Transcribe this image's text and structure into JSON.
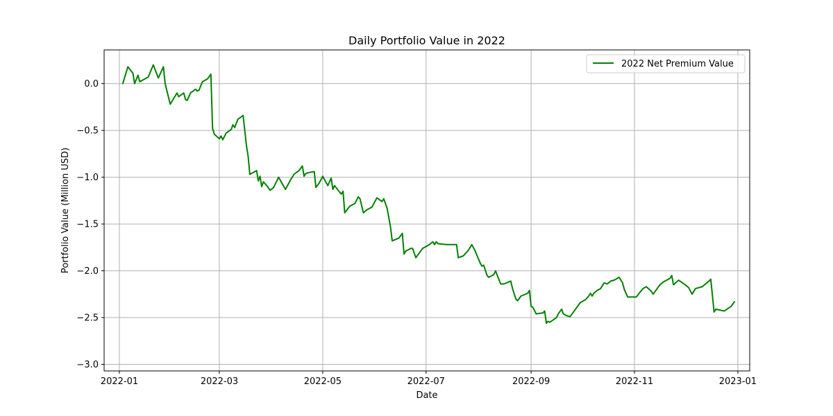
{
  "chart_data": {
    "type": "line",
    "title": "Daily Portfolio Value in 2022",
    "xlabel": "Date",
    "ylabel": "Portfolio Value (Million USD)",
    "xlim": [
      "2021-12-23",
      "2023-01-08"
    ],
    "ylim": [
      -3.07,
      0.36
    ],
    "x_ticks": [
      "2022-01-01",
      "2022-03-01",
      "2022-05-01",
      "2022-07-01",
      "2022-09-01",
      "2022-11-01",
      "2023-01-01"
    ],
    "x_tick_labels": [
      "2022-01",
      "2022-03",
      "2022-05",
      "2022-07",
      "2022-09",
      "2022-11",
      "2023-01"
    ],
    "y_ticks": [
      0.0,
      -0.5,
      -1.0,
      -1.5,
      -2.0,
      -2.5,
      -3.0
    ],
    "y_tick_labels": [
      "0.0",
      "−0.5",
      "−1.0",
      "−1.5",
      "−2.0",
      "−2.5",
      "−3.0"
    ],
    "grid": true,
    "legend_position": "top-right",
    "series": [
      {
        "name": "2022 Net Premium Value",
        "color": "#008000",
        "points": [
          [
            "2022-01-03",
            0.0
          ],
          [
            "2022-01-06",
            0.18
          ],
          [
            "2022-01-09",
            0.11
          ],
          [
            "2022-01-10",
            0.0
          ],
          [
            "2022-01-12",
            0.09
          ],
          [
            "2022-01-13",
            0.02
          ],
          [
            "2022-01-18",
            0.07
          ],
          [
            "2022-01-21",
            0.2
          ],
          [
            "2022-01-24",
            0.06
          ],
          [
            "2022-01-27",
            0.18
          ],
          [
            "2022-01-28",
            0.0
          ],
          [
            "2022-01-31",
            -0.22
          ],
          [
            "2022-02-04",
            -0.1
          ],
          [
            "2022-02-05",
            -0.14
          ],
          [
            "2022-02-08",
            -0.1
          ],
          [
            "2022-02-09",
            -0.17
          ],
          [
            "2022-02-10",
            -0.18
          ],
          [
            "2022-02-12",
            -0.1
          ],
          [
            "2022-02-15",
            -0.06
          ],
          [
            "2022-02-16",
            -0.08
          ],
          [
            "2022-02-17",
            -0.07
          ],
          [
            "2022-02-19",
            0.02
          ],
          [
            "2022-02-22",
            0.05
          ],
          [
            "2022-02-24",
            0.1
          ],
          [
            "2022-02-25",
            -0.48
          ],
          [
            "2022-02-26",
            -0.54
          ],
          [
            "2022-03-01",
            -0.59
          ],
          [
            "2022-03-02",
            -0.56
          ],
          [
            "2022-03-03",
            -0.6
          ],
          [
            "2022-03-05",
            -0.53
          ],
          [
            "2022-03-08",
            -0.49
          ],
          [
            "2022-03-09",
            -0.44
          ],
          [
            "2022-03-10",
            -0.47
          ],
          [
            "2022-03-12",
            -0.38
          ],
          [
            "2022-03-15",
            -0.34
          ],
          [
            "2022-03-17",
            -0.66
          ],
          [
            "2022-03-18",
            -0.78
          ],
          [
            "2022-03-19",
            -0.97
          ],
          [
            "2022-03-23",
            -0.93
          ],
          [
            "2022-03-24",
            -1.04
          ],
          [
            "2022-03-25",
            -0.99
          ],
          [
            "2022-03-26",
            -1.1
          ],
          [
            "2022-03-27",
            -1.05
          ],
          [
            "2022-03-29",
            -1.09
          ],
          [
            "2022-03-31",
            -1.14
          ],
          [
            "2022-04-02",
            -1.11
          ],
          [
            "2022-04-05",
            -1.0
          ],
          [
            "2022-04-09",
            -1.13
          ],
          [
            "2022-04-12",
            -1.03
          ],
          [
            "2022-04-14",
            -0.97
          ],
          [
            "2022-04-17",
            -0.93
          ],
          [
            "2022-04-19",
            -0.88
          ],
          [
            "2022-04-20",
            -0.99
          ],
          [
            "2022-04-21",
            -0.96
          ],
          [
            "2022-04-23",
            -0.95
          ],
          [
            "2022-04-26",
            -0.94
          ],
          [
            "2022-04-27",
            -1.11
          ],
          [
            "2022-04-29",
            -1.06
          ],
          [
            "2022-05-01",
            -0.99
          ],
          [
            "2022-05-04",
            -1.09
          ],
          [
            "2022-05-06",
            -1.01
          ],
          [
            "2022-05-07",
            -1.13
          ],
          [
            "2022-05-08",
            -1.09
          ],
          [
            "2022-05-11",
            -1.16
          ],
          [
            "2022-05-12",
            -1.18
          ],
          [
            "2022-05-13",
            -1.15
          ],
          [
            "2022-05-14",
            -1.38
          ],
          [
            "2022-05-17",
            -1.31
          ],
          [
            "2022-05-20",
            -1.28
          ],
          [
            "2022-05-22",
            -1.21
          ],
          [
            "2022-05-23",
            -1.23
          ],
          [
            "2022-05-25",
            -1.38
          ],
          [
            "2022-05-27",
            -1.35
          ],
          [
            "2022-05-30",
            -1.32
          ],
          [
            "2022-06-02",
            -1.22
          ],
          [
            "2022-06-05",
            -1.26
          ],
          [
            "2022-06-06",
            -1.23
          ],
          [
            "2022-06-07",
            -1.28
          ],
          [
            "2022-06-08",
            -1.33
          ],
          [
            "2022-06-10",
            -1.53
          ],
          [
            "2022-06-11",
            -1.68
          ],
          [
            "2022-06-15",
            -1.65
          ],
          [
            "2022-06-17",
            -1.6
          ],
          [
            "2022-06-18",
            -1.82
          ],
          [
            "2022-06-19",
            -1.79
          ],
          [
            "2022-06-22",
            -1.76
          ],
          [
            "2022-06-23",
            -1.76
          ],
          [
            "2022-06-25",
            -1.86
          ],
          [
            "2022-06-29",
            -1.76
          ],
          [
            "2022-07-03",
            -1.72
          ],
          [
            "2022-07-05",
            -1.69
          ],
          [
            "2022-07-06",
            -1.72
          ],
          [
            "2022-07-07",
            -1.69
          ],
          [
            "2022-07-08",
            -1.71
          ],
          [
            "2022-07-13",
            -1.72
          ],
          [
            "2022-07-18",
            -1.72
          ],
          [
            "2022-07-19",
            -1.72
          ],
          [
            "2022-07-20",
            -1.86
          ],
          [
            "2022-07-23",
            -1.84
          ],
          [
            "2022-07-26",
            -1.78
          ],
          [
            "2022-07-28",
            -1.72
          ],
          [
            "2022-07-30",
            -1.79
          ],
          [
            "2022-08-02",
            -1.92
          ],
          [
            "2022-08-03",
            -1.95
          ],
          [
            "2022-08-04",
            -1.94
          ],
          [
            "2022-08-06",
            -2.05
          ],
          [
            "2022-08-07",
            -2.07
          ],
          [
            "2022-08-10",
            -2.04
          ],
          [
            "2022-08-11",
            -2.0
          ],
          [
            "2022-08-14",
            -2.14
          ],
          [
            "2022-08-16",
            -2.14
          ],
          [
            "2022-08-20",
            -2.11
          ],
          [
            "2022-08-21",
            -2.19
          ],
          [
            "2022-08-23",
            -2.3
          ],
          [
            "2022-08-24",
            -2.32
          ],
          [
            "2022-08-26",
            -2.27
          ],
          [
            "2022-08-30",
            -2.24
          ],
          [
            "2022-08-31",
            -2.21
          ],
          [
            "2022-09-01",
            -2.38
          ],
          [
            "2022-09-02",
            -2.39
          ],
          [
            "2022-09-04",
            -2.46
          ],
          [
            "2022-09-08",
            -2.45
          ],
          [
            "2022-09-09",
            -2.43
          ],
          [
            "2022-09-10",
            -2.56
          ],
          [
            "2022-09-11",
            -2.54
          ],
          [
            "2022-09-12",
            -2.55
          ],
          [
            "2022-09-16",
            -2.5
          ],
          [
            "2022-09-17",
            -2.46
          ],
          [
            "2022-09-19",
            -2.41
          ],
          [
            "2022-09-20",
            -2.46
          ],
          [
            "2022-09-22",
            -2.48
          ],
          [
            "2022-09-24",
            -2.49
          ],
          [
            "2022-09-30",
            -2.34
          ],
          [
            "2022-10-01",
            -2.33
          ],
          [
            "2022-10-03",
            -2.31
          ],
          [
            "2022-10-05",
            -2.27
          ],
          [
            "2022-10-06",
            -2.24
          ],
          [
            "2022-10-07",
            -2.27
          ],
          [
            "2022-10-08",
            -2.24
          ],
          [
            "2022-10-10",
            -2.21
          ],
          [
            "2022-10-12",
            -2.19
          ],
          [
            "2022-10-14",
            -2.13
          ],
          [
            "2022-10-16",
            -2.14
          ],
          [
            "2022-10-18",
            -2.11
          ],
          [
            "2022-10-20",
            -2.1
          ],
          [
            "2022-10-23",
            -2.07
          ],
          [
            "2022-10-25",
            -2.13
          ],
          [
            "2022-10-26",
            -2.2
          ],
          [
            "2022-10-28",
            -2.28
          ],
          [
            "2022-11-02",
            -2.28
          ],
          [
            "2022-11-06",
            -2.19
          ],
          [
            "2022-11-08",
            -2.17
          ],
          [
            "2022-11-11",
            -2.22
          ],
          [
            "2022-11-12",
            -2.25
          ],
          [
            "2022-11-16",
            -2.15
          ],
          [
            "2022-11-18",
            -2.12
          ],
          [
            "2022-11-22",
            -2.08
          ],
          [
            "2022-11-23",
            -2.05
          ],
          [
            "2022-11-24",
            -2.15
          ],
          [
            "2022-11-27",
            -2.1
          ],
          [
            "2022-12-01",
            -2.15
          ],
          [
            "2022-12-03",
            -2.18
          ],
          [
            "2022-12-05",
            -2.25
          ],
          [
            "2022-12-07",
            -2.19
          ],
          [
            "2022-12-11",
            -2.17
          ],
          [
            "2022-12-15",
            -2.11
          ],
          [
            "2022-12-16",
            -2.09
          ],
          [
            "2022-12-18",
            -2.44
          ],
          [
            "2022-12-19",
            -2.41
          ],
          [
            "2022-12-24",
            -2.43
          ],
          [
            "2022-12-28",
            -2.38
          ],
          [
            "2022-12-30",
            -2.33
          ]
        ]
      }
    ]
  }
}
